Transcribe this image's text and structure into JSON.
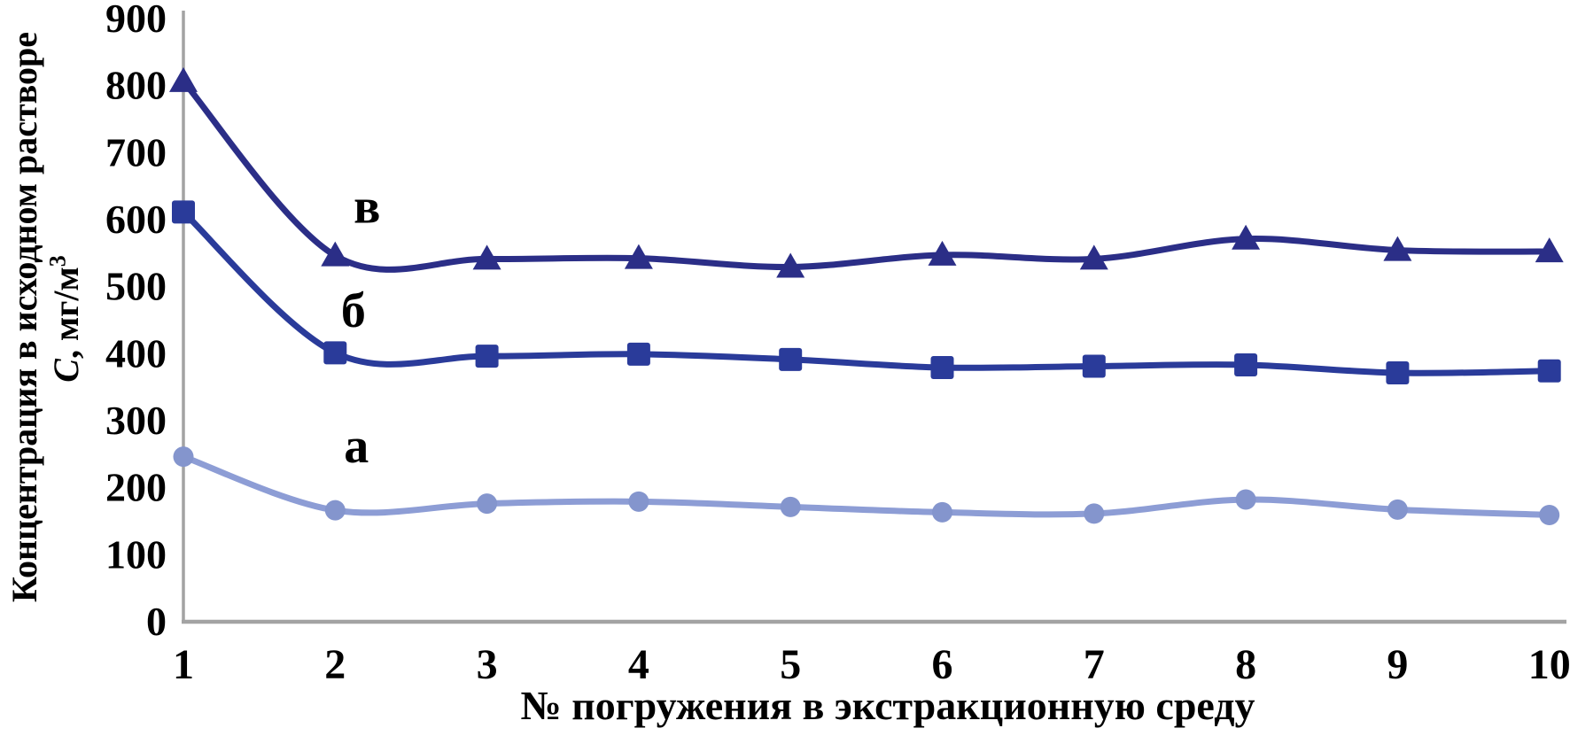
{
  "chart_data": {
    "type": "line",
    "title": "",
    "xlabel": "№ погружения в экстракционную среду",
    "ylabel_line1": "Концентрация в исходном растворе",
    "ylabel_line2_symbol": "С",
    "ylabel_line2_unit": ", мг/м",
    "ylabel_line2_sup": "3",
    "x": [
      1,
      2,
      3,
      4,
      5,
      6,
      7,
      8,
      9,
      10
    ],
    "x_tick_labels": [
      "1",
      "2",
      "3",
      "4",
      "5",
      "6",
      "7",
      "8",
      "9",
      "10"
    ],
    "y_ticks": [
      0,
      100,
      200,
      300,
      400,
      500,
      600,
      700,
      800,
      900
    ],
    "ylim": [
      0,
      900
    ],
    "xlim": [
      1,
      10
    ],
    "grid": false,
    "legend_position": "inline-annotations",
    "series": [
      {
        "key": "a",
        "name": "а",
        "marker": "circle",
        "color": "#8d9dd5",
        "marker_color": "#8495cd",
        "values": [
          245,
          165,
          175,
          178,
          170,
          162,
          160,
          181,
          166,
          158
        ],
        "label_at": {
          "x": 2.14,
          "y": 262
        }
      },
      {
        "key": "b",
        "name": "б",
        "marker": "square",
        "color": "#2a3b9a",
        "marker_color": "#2a3b9a",
        "values": [
          610,
          400,
          395,
          398,
          390,
          378,
          380,
          382,
          370,
          373
        ],
        "label_at": {
          "x": 2.12,
          "y": 464
        }
      },
      {
        "key": "v",
        "name": "в",
        "marker": "triangle",
        "color": "#2b2e87",
        "marker_color": "#2b2e87",
        "values": [
          805,
          545,
          540,
          541,
          528,
          546,
          540,
          570,
          553,
          551
        ],
        "label_at": {
          "x": 2.21,
          "y": 619
        }
      }
    ],
    "axis_color": "#a3a3a3"
  }
}
